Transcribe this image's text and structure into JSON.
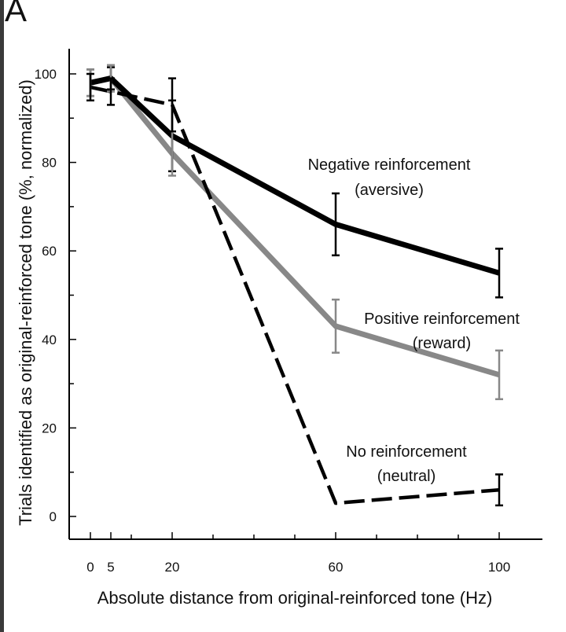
{
  "panel_label": "A",
  "chart_data": {
    "type": "line",
    "title": "",
    "xlabel": "Absolute distance from original-reinforced tone (Hz)",
    "ylabel": "Trials identified as original-reinforced tone (%, normalized)",
    "xlim": [
      0,
      100
    ],
    "ylim": [
      0,
      100
    ],
    "x_ticks": [
      0,
      5,
      20,
      60,
      100
    ],
    "y_ticks": [
      0,
      20,
      40,
      60,
      80,
      100
    ],
    "x": [
      0,
      5,
      20,
      60,
      100
    ],
    "series": [
      {
        "name": "Negative reinforcement (aversive)",
        "label_lines": [
          "Negative reinforcement",
          "(aversive)"
        ],
        "color": "#000000",
        "style": "solid",
        "values": [
          98,
          99,
          86,
          66,
          55
        ],
        "errors": [
          3,
          2.5,
          8,
          7,
          5.5
        ]
      },
      {
        "name": "Positive reinforcement (reward)",
        "label_lines": [
          "Positive reinforcement",
          "(reward)"
        ],
        "color": "#888888",
        "style": "solid",
        "values": [
          98,
          99,
          82,
          43,
          32
        ],
        "errors": [
          3,
          3,
          5,
          6,
          5.5
        ]
      },
      {
        "name": "No reinforcement (neutral)",
        "label_lines": [
          "No reinforcement",
          "(neutral)"
        ],
        "color": "#000000",
        "style": "dashed",
        "values": [
          97,
          96,
          93,
          3,
          6
        ],
        "errors": [
          3,
          3,
          6,
          0,
          3.5
        ]
      }
    ]
  }
}
